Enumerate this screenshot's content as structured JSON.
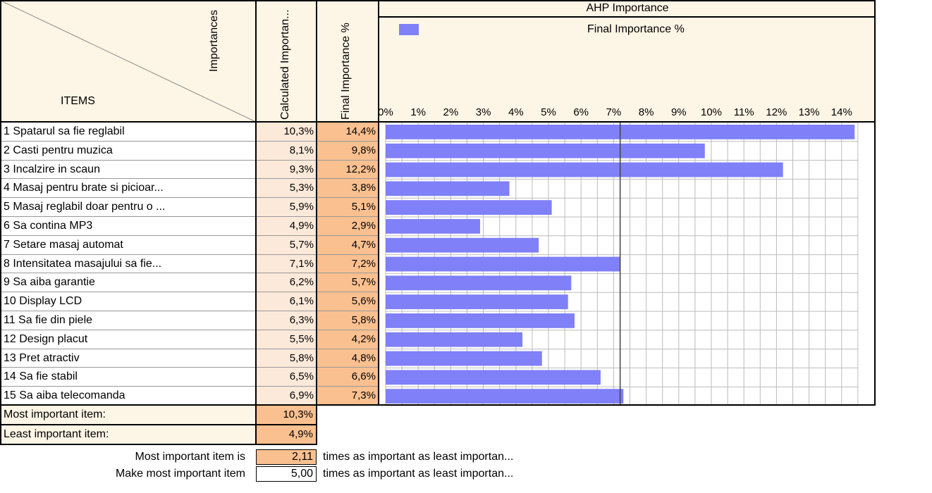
{
  "header": {
    "importances_label": "Importances",
    "items_label": "ITEMS",
    "calc_col_label": "Calculated Importan...",
    "final_col_label": "Final Importance %",
    "chart_title": "AHP Importance"
  },
  "rows": [
    {
      "label": "1 Spatarul sa fie reglabil",
      "calc": "10,3%",
      "final": "14,4%"
    },
    {
      "label": "2 Casti pentru muzica",
      "calc": "8,1%",
      "final": "9,8%"
    },
    {
      "label": "3 Incalzire in scaun",
      "calc": "9,3%",
      "final": "12,2%"
    },
    {
      "label": "4 Masaj pentru brate si picioar...",
      "calc": "5,3%",
      "final": "3,8%"
    },
    {
      "label": "5 Masaj reglabil doar pentru o ...",
      "calc": "5,9%",
      "final": "5,1%"
    },
    {
      "label": "6 Sa contina MP3",
      "calc": "4,9%",
      "final": "2,9%"
    },
    {
      "label": "7 Setare masaj automat",
      "calc": "5,7%",
      "final": "4,7%"
    },
    {
      "label": "8 Intensitatea masajului sa fie...",
      "calc": "7,1%",
      "final": "7,2%"
    },
    {
      "label": "9 Sa aiba garantie",
      "calc": "6,2%",
      "final": "5,7%"
    },
    {
      "label": "10 Display LCD",
      "calc": "6,1%",
      "final": "5,6%"
    },
    {
      "label": "11 Sa fie din piele",
      "calc": "6,3%",
      "final": "5,8%"
    },
    {
      "label": "12 Design placut",
      "calc": "5,5%",
      "final": "4,2%"
    },
    {
      "label": "13 Pret atractiv",
      "calc": "5,8%",
      "final": "4,8%"
    },
    {
      "label": "14 Sa fie stabil",
      "calc": "6,5%",
      "final": "6,6%"
    },
    {
      "label": "15 Sa aiba telecomanda",
      "calc": "6,9%",
      "final": "7,3%"
    }
  ],
  "summary": {
    "most_label": "Most important item:",
    "most_value": "10,3%",
    "least_label": "Least important item:",
    "least_value": "4,9%"
  },
  "ratio": {
    "line1_label": "Most important item is",
    "line1_value": "2,11",
    "line1_suffix": "times as important as least importan...",
    "line2_label": "Make most important item",
    "line2_value": "5,00",
    "line2_suffix": "times as important as least importan..."
  },
  "colors": {
    "bar": "#8080f8",
    "calc_bg": "#fde9d9",
    "final_bg": "#fac090",
    "header_bg": "#fdf5e6"
  },
  "chart_data": {
    "type": "bar",
    "orientation": "horizontal",
    "title": "AHP Importance",
    "legend": "Final Importance %",
    "legend_position": "top",
    "categories": [
      "1 Spatarul sa fie reglabil",
      "2 Casti pentru muzica",
      "3 Incalzire in scaun",
      "4 Masaj pentru brate si picioar...",
      "5 Masaj reglabil doar pentru o ...",
      "6 Sa contina MP3",
      "7 Setare masaj automat",
      "8 Intensitatea masajului sa fie...",
      "9 Sa aiba garantie",
      "10 Display LCD",
      "11 Sa fie din piele",
      "12 Design placut",
      "13 Pret atractiv",
      "14 Sa fie stabil",
      "15 Sa aiba telecomanda"
    ],
    "series": [
      {
        "name": "Final Importance %",
        "values": [
          14.4,
          9.8,
          12.2,
          3.8,
          5.1,
          2.9,
          4.7,
          7.2,
          5.7,
          5.6,
          5.8,
          4.2,
          4.8,
          6.6,
          7.3
        ]
      }
    ],
    "ticks": [
      "0%",
      "1%",
      "2%",
      "3%",
      "4%",
      "5%",
      "6%",
      "7%",
      "8%",
      "9%",
      "10%",
      "11%",
      "12%",
      "13%",
      "14%"
    ],
    "xlim": [
      0,
      14.5
    ],
    "reference_line": 7.2,
    "grid": true
  }
}
